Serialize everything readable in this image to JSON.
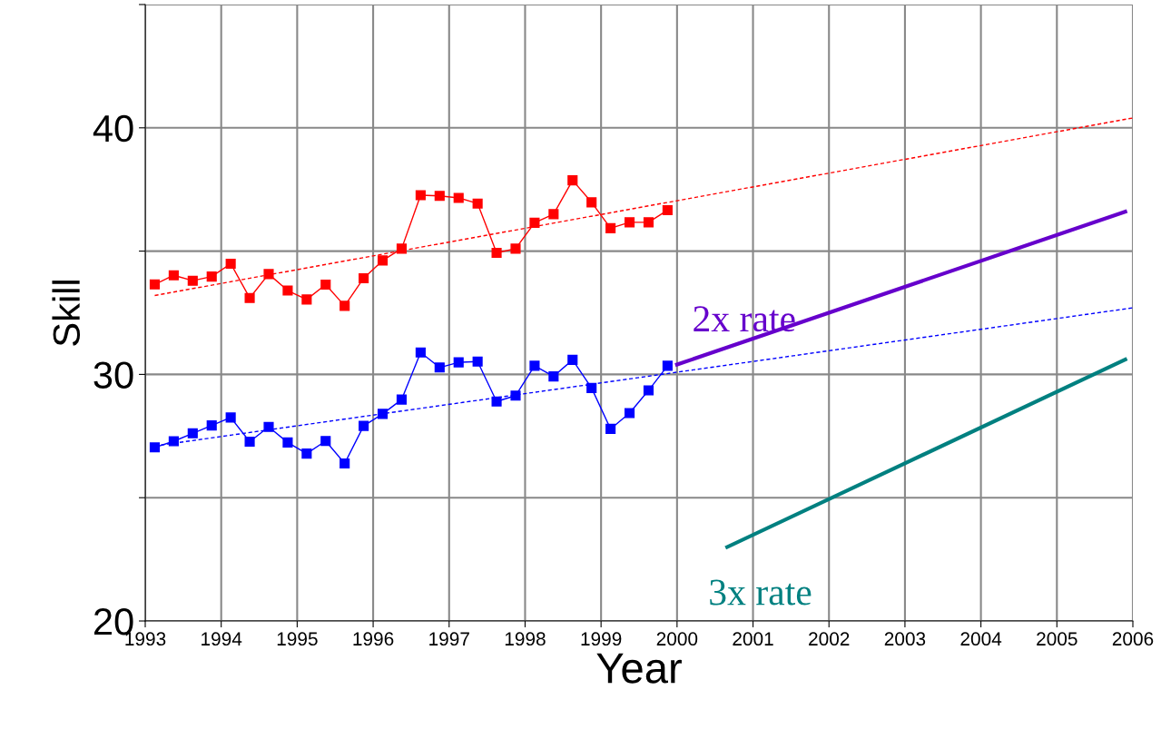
{
  "chart_data": {
    "type": "line",
    "xlabel": "Year",
    "ylabel": "Skill",
    "xlim": [
      1993,
      2006
    ],
    "xticks": [
      1993,
      1994,
      1995,
      1996,
      1997,
      1998,
      1999,
      2000,
      2001,
      2002,
      2003,
      2004,
      2005,
      2006
    ],
    "ylim": [
      20,
      45
    ],
    "yticks": [
      20,
      {
        "value": 25,
        "label": null
      },
      30,
      {
        "value": 35,
        "label": null
      },
      40,
      {
        "value": 45,
        "label": null
      }
    ],
    "grid": true,
    "marker": "square",
    "line_style": "solid",
    "series": [
      {
        "color": "#ff0000",
        "x": [
          1993.125,
          1993.375,
          1993.625,
          1993.875,
          1994.125,
          1994.375,
          1994.625,
          1994.875,
          1995.125,
          1995.375,
          1995.625,
          1995.875,
          1996.125,
          1996.375,
          1996.625,
          1996.875,
          1997.125,
          1997.375,
          1997.625,
          1997.875,
          1998.125,
          1998.375,
          1998.625,
          1998.875,
          1999.125,
          1999.375,
          1999.625,
          1999.875
        ],
        "values": [
          33.65,
          34.02,
          33.8,
          33.97,
          34.49,
          33.1,
          34.07,
          33.4,
          33.04,
          33.64,
          32.78,
          33.9,
          34.62,
          35.1,
          37.27,
          37.24,
          37.16,
          36.93,
          34.93,
          35.1,
          36.15,
          36.5,
          37.87,
          36.98,
          35.93,
          36.17,
          36.17,
          36.66
        ]
      },
      {
        "color": "#0000ff",
        "x": [
          1993.125,
          1993.375,
          1993.625,
          1993.875,
          1994.125,
          1994.375,
          1994.625,
          1994.875,
          1995.125,
          1995.375,
          1995.625,
          1995.875,
          1996.125,
          1996.375,
          1996.625,
          1996.875,
          1997.125,
          1997.375,
          1997.625,
          1997.875,
          1998.125,
          1998.375,
          1998.625,
          1998.875,
          1999.125,
          1999.375,
          1999.625,
          1999.875
        ],
        "values": [
          27.04,
          27.29,
          27.61,
          27.93,
          28.25,
          27.27,
          27.87,
          27.24,
          26.79,
          27.3,
          26.39,
          27.91,
          28.4,
          28.98,
          30.89,
          30.28,
          30.49,
          30.52,
          28.9,
          29.14,
          30.35,
          29.92,
          30.59,
          29.45,
          27.79,
          28.43,
          29.35,
          30.35
        ]
      },
      {
        "color": "#ff0000",
        "x": [
          1993.125,
          2006
        ],
        "values": [
          33.2,
          40.4
        ],
        "marker": "none",
        "line_style": "dashed"
      },
      {
        "color": "#0000ff",
        "x": [
          1993.125,
          2006
        ],
        "values": [
          27.1,
          32.7
        ],
        "marker": "none",
        "line_style": "dashed"
      },
      {
        "name": "2x rate",
        "color": "#6600cc",
        "x": [
          2000,
          2005.9
        ],
        "values": [
          30.4,
          36.6
        ],
        "marker": "none"
      },
      {
        "name": "3x rate",
        "color": "#008080",
        "x": [
          2000.66,
          2005.9
        ],
        "values": [
          23.0,
          30.6
        ],
        "marker": "none"
      }
    ]
  }
}
